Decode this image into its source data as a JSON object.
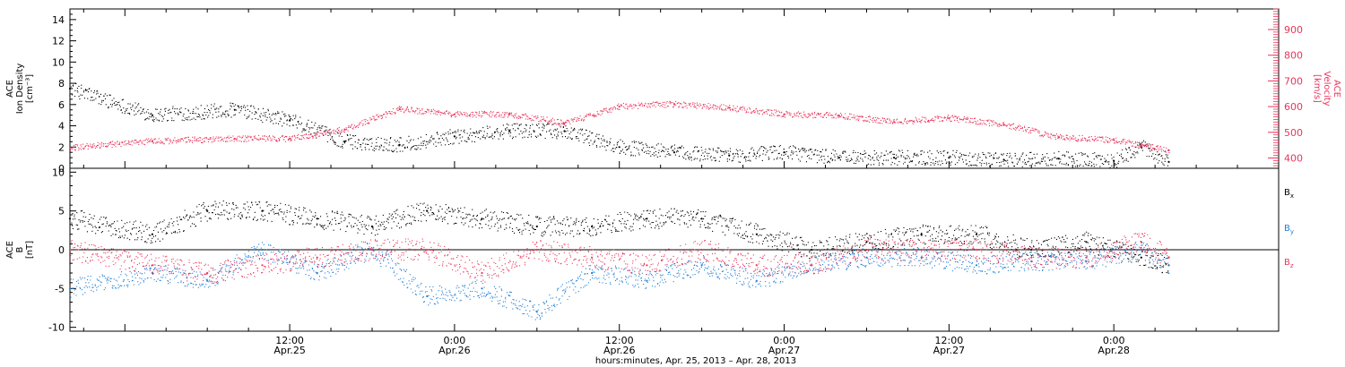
{
  "chart_data": [
    {
      "type": "scatter",
      "left_axis": {
        "title": [
          "ACE",
          "Ion Density",
          "[cm⁻³]"
        ],
        "ylim": [
          0,
          15
        ],
        "ticks": [
          0,
          2,
          4,
          6,
          8,
          10,
          12,
          14
        ],
        "color": "#000000"
      },
      "right_axis": {
        "title": [
          "ACE",
          "Velocity",
          "[km/s]"
        ],
        "ylim": [
          360,
          980
        ],
        "ticks": [
          400,
          500,
          600,
          700,
          800,
          900
        ],
        "color": "#e8365d"
      },
      "series": [
        {
          "color": "#000000",
          "axis": "left",
          "x": [
            "2013-04-24T20:00",
            "2013-04-25T02:00",
            "2013-04-25T08:00",
            "2013-04-25T12:00",
            "2013-04-25T16:00",
            "2013-04-25T20:00",
            "2013-04-26T00:00",
            "2013-04-26T04:00",
            "2013-04-26T08:00",
            "2013-04-26T12:00",
            "2013-04-26T16:00",
            "2013-04-26T20:00",
            "2013-04-27T00:00",
            "2013-04-27T04:00",
            "2013-04-27T08:00",
            "2013-04-27T12:00",
            "2013-04-27T16:00",
            "2013-04-27T20:00",
            "2013-04-28T00:00",
            "2013-04-28T02:00",
            "2013-04-28T04:00"
          ],
          "y": [
            7.5,
            5,
            5.5,
            4.5,
            2.5,
            2.2,
            3,
            3.5,
            3.5,
            2,
            1.5,
            1.2,
            1.5,
            1,
            1,
            1,
            0.8,
            0.9,
            0.7,
            2,
            0.6
          ]
        },
        {
          "color": "#e8365d",
          "axis": "right",
          "x": [
            "2013-04-24T20:00",
            "2013-04-25T02:00",
            "2013-04-25T08:00",
            "2013-04-25T12:00",
            "2013-04-25T16:00",
            "2013-04-25T20:00",
            "2013-04-26T00:00",
            "2013-04-26T04:00",
            "2013-04-26T08:00",
            "2013-04-26T12:00",
            "2013-04-26T16:00",
            "2013-04-26T20:00",
            "2013-04-27T00:00",
            "2013-04-27T04:00",
            "2013-04-27T08:00",
            "2013-04-27T12:00",
            "2013-04-27T16:00",
            "2013-04-27T20:00",
            "2013-04-28T00:00",
            "2013-04-28T02:00",
            "2013-04-28T04:00"
          ],
          "y": [
            440,
            465,
            475,
            475,
            510,
            590,
            570,
            570,
            535,
            600,
            610,
            595,
            570,
            565,
            540,
            555,
            530,
            480,
            470,
            450,
            430
          ]
        }
      ]
    },
    {
      "type": "scatter",
      "left_axis": {
        "title": [
          "ACE",
          "B",
          "[nT]"
        ],
        "ylim": [
          -10.5,
          10.5
        ],
        "ticks": [
          -10,
          -5,
          0,
          5,
          10
        ],
        "color": "#000000"
      },
      "zero_line": true,
      "legend": {
        "position": "right",
        "entries": [
          "Bx",
          "By",
          "Bz"
        ]
      },
      "series": [
        {
          "name": "Bx",
          "color": "#000000",
          "x": [
            "2013-04-24T20:00",
            "2013-04-25T02:00",
            "2013-04-25T06:00",
            "2013-04-25T10:00",
            "2013-04-25T14:00",
            "2013-04-25T18:00",
            "2013-04-25T22:00",
            "2013-04-26T02:00",
            "2013-04-26T06:00",
            "2013-04-26T10:00",
            "2013-04-26T14:00",
            "2013-04-26T18:00",
            "2013-04-26T22:00",
            "2013-04-27T02:00",
            "2013-04-27T06:00",
            "2013-04-27T10:00",
            "2013-04-27T14:00",
            "2013-04-27T18:00",
            "2013-04-27T22:00",
            "2013-04-28T02:00",
            "2013-04-28T04:00"
          ],
          "y": [
            4,
            2,
            5,
            5,
            4,
            3,
            5,
            4,
            3,
            3,
            4,
            4,
            2,
            0,
            1,
            2,
            2,
            0,
            1,
            -1,
            -2
          ]
        },
        {
          "name": "By",
          "color": "#1f7fd8",
          "x": [
            "2013-04-24T20:00",
            "2013-04-25T02:00",
            "2013-04-25T06:00",
            "2013-04-25T10:00",
            "2013-04-25T14:00",
            "2013-04-25T18:00",
            "2013-04-25T22:00",
            "2013-04-26T02:00",
            "2013-04-26T06:00",
            "2013-04-26T10:00",
            "2013-04-26T14:00",
            "2013-04-26T18:00",
            "2013-04-26T22:00",
            "2013-04-27T02:00",
            "2013-04-27T06:00",
            "2013-04-27T10:00",
            "2013-04-27T14:00",
            "2013-04-27T18:00",
            "2013-04-27T22:00",
            "2013-04-28T02:00",
            "2013-04-28T04:00"
          ],
          "y": [
            -5,
            -3,
            -4,
            0,
            -3,
            0,
            -6,
            -5,
            -8,
            -3,
            -4,
            -2,
            -4,
            -2,
            -1,
            -1,
            -2,
            -1.5,
            -1.5,
            0,
            -2
          ]
        },
        {
          "name": "Bz",
          "color": "#e8365d",
          "x": [
            "2013-04-24T20:00",
            "2013-04-25T02:00",
            "2013-04-25T06:00",
            "2013-04-25T10:00",
            "2013-04-25T14:00",
            "2013-04-25T18:00",
            "2013-04-25T22:00",
            "2013-04-26T02:00",
            "2013-04-26T06:00",
            "2013-04-26T10:00",
            "2013-04-26T14:00",
            "2013-04-26T18:00",
            "2013-04-26T22:00",
            "2013-04-27T02:00",
            "2013-04-27T06:00",
            "2013-04-27T10:00",
            "2013-04-27T14:00",
            "2013-04-27T18:00",
            "2013-04-27T22:00",
            "2013-04-28T02:00",
            "2013-04-28T04:00"
          ],
          "y": [
            0,
            -2,
            -3,
            -2,
            -1,
            0,
            0,
            -3,
            0,
            -1,
            -2,
            0,
            -2,
            -2,
            0,
            0,
            0,
            -1,
            -1,
            1,
            -1
          ]
        }
      ]
    }
  ],
  "x_axis": {
    "range": [
      "2013-04-24T20:00",
      "2013-04-28T12:00"
    ],
    "ticks": [
      {
        "t": "2013-04-25T12:00",
        "time": "12:00",
        "date": "Apr.25"
      },
      {
        "t": "2013-04-26T00:00",
        "time": "0:00",
        "date": "Apr.26"
      },
      {
        "t": "2013-04-26T12:00",
        "time": "12:00",
        "date": "Apr.26"
      },
      {
        "t": "2013-04-27T00:00",
        "time": "0:00",
        "date": "Apr.27"
      },
      {
        "t": "2013-04-27T12:00",
        "time": "12:00",
        "date": "Apr.27"
      },
      {
        "t": "2013-04-28T00:00",
        "time": "0:00",
        "date": "Apr.28"
      }
    ],
    "label": "hours:minutes, Apr. 25, 2013 – Apr. 28, 2013"
  }
}
